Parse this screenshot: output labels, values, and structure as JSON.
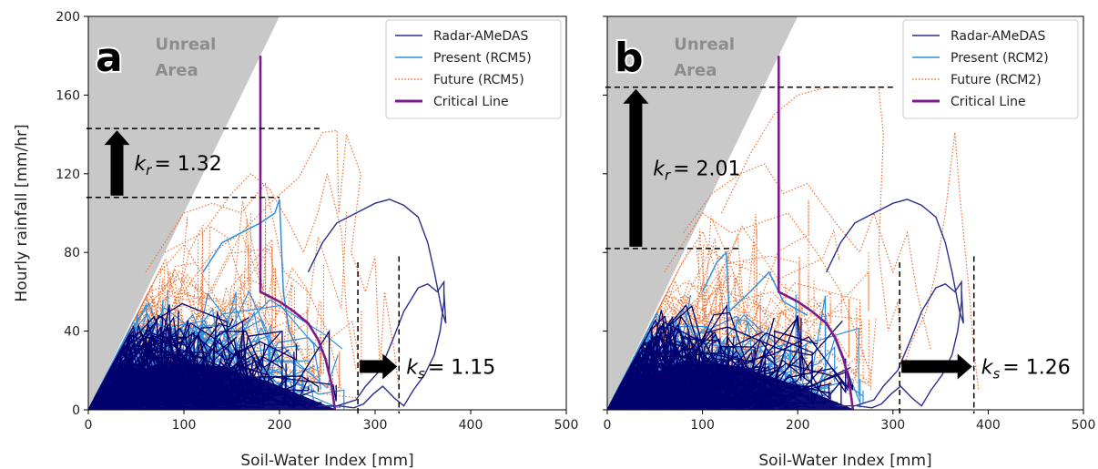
{
  "chart_data": [
    {
      "type": "line",
      "panel_label": "a",
      "xlabel": "Soil-Water Index [mm]",
      "ylabel": "Hourly rainfall [mm/hr]",
      "xlim": [
        0,
        500
      ],
      "ylim": [
        0,
        200
      ],
      "xticks": [
        0,
        100,
        200,
        300,
        400,
        500
      ],
      "yticks": [
        0,
        40,
        80,
        120,
        160,
        200
      ],
      "legend_position": "top-right",
      "legend": [
        "Radar-AMeDAS",
        "Present (RCM5)",
        "Future (RCM5)",
        "Critical Line"
      ],
      "unreal_label_1": "Unreal",
      "unreal_label_2": "Area",
      "unreal_area": [
        [
          0,
          0
        ],
        [
          0,
          200
        ],
        [
          200,
          200
        ]
      ],
      "critical_line": [
        [
          180,
          180
        ],
        [
          180,
          100
        ],
        [
          180,
          60
        ],
        [
          200,
          55
        ],
        [
          215,
          50
        ],
        [
          230,
          44
        ],
        [
          240,
          36
        ],
        [
          248,
          26
        ],
        [
          254,
          14
        ],
        [
          258,
          0
        ]
      ],
      "kr_prefix": "k",
      "kr_sub": "r",
      "kr_value": "= 1.32",
      "kr_lower": 108,
      "kr_upper": 143,
      "ks_prefix": "k",
      "ks_sub": "s",
      "ks_value": "= 1.15",
      "ks_left": 282,
      "ks_right": 325,
      "radar_loop": [
        [
          240,
          2
        ],
        [
          260,
          2
        ],
        [
          280,
          5
        ],
        [
          290,
          12
        ],
        [
          305,
          20
        ],
        [
          318,
          35
        ],
        [
          330,
          50
        ],
        [
          345,
          62
        ],
        [
          355,
          64
        ],
        [
          365,
          60
        ],
        [
          372,
          65
        ],
        [
          372,
          55
        ],
        [
          368,
          40
        ],
        [
          362,
          28
        ],
        [
          352,
          18
        ],
        [
          340,
          10
        ],
        [
          330,
          2
        ],
        [
          320,
          6
        ],
        [
          308,
          12
        ],
        [
          298,
          8
        ],
        [
          288,
          3
        ],
        [
          278,
          1
        ],
        [
          262,
          2
        ]
      ],
      "radar_peak": [
        [
          230,
          70
        ],
        [
          245,
          85
        ],
        [
          260,
          95
        ],
        [
          280,
          100
        ],
        [
          300,
          105
        ],
        [
          315,
          107
        ],
        [
          330,
          104
        ],
        [
          345,
          98
        ],
        [
          355,
          85
        ],
        [
          362,
          70
        ],
        [
          366,
          60
        ],
        [
          370,
          50
        ],
        [
          374,
          44
        ],
        [
          372,
          60
        ]
      ],
      "present_peak": [
        [
          120,
          70
        ],
        [
          140,
          85
        ],
        [
          160,
          90
        ],
        [
          180,
          95
        ],
        [
          195,
          100
        ],
        [
          200,
          107
        ],
        [
          204,
          60
        ],
        [
          210,
          40
        ],
        [
          220,
          30
        ]
      ],
      "future_paths": [
        [
          [
            100,
            60
          ],
          [
            130,
            80
          ],
          [
            160,
            90
          ],
          [
            190,
            105
          ],
          [
            220,
            118
          ],
          [
            245,
            141
          ],
          [
            260,
            142
          ],
          [
            262,
            100
          ],
          [
            270,
            140
          ],
          [
            285,
            120
          ],
          [
            275,
            80
          ],
          [
            290,
            60
          ],
          [
            300,
            78
          ],
          [
            305,
            20
          ],
          [
            310,
            60
          ],
          [
            320,
            30
          ],
          [
            325,
            10
          ]
        ],
        [
          [
            80,
            80
          ],
          [
            120,
            90
          ],
          [
            150,
            110
          ],
          [
            170,
            120
          ],
          [
            190,
            112
          ],
          [
            210,
            95
          ],
          [
            225,
            80
          ],
          [
            240,
            100
          ],
          [
            250,
            120
          ],
          [
            265,
            90
          ],
          [
            270,
            50
          ],
          [
            280,
            20
          ]
        ],
        [
          [
            60,
            70
          ],
          [
            100,
            100
          ],
          [
            130,
            105
          ],
          [
            160,
            100
          ],
          [
            185,
            115
          ],
          [
            205,
            70
          ],
          [
            230,
            60
          ],
          [
            250,
            40
          ],
          [
            265,
            10
          ]
        ]
      ]
    },
    {
      "type": "line",
      "panel_label": "b",
      "xlabel": "Soil-Water Index [mm]",
      "ylabel": "",
      "xlim": [
        0,
        500
      ],
      "ylim": [
        0,
        200
      ],
      "xticks": [
        0,
        100,
        200,
        300,
        400,
        500
      ],
      "yticks": [],
      "legend_position": "top-right",
      "legend": [
        "Radar-AMeDAS",
        "Present (RCM2)",
        "Future (RCM2)",
        "Critical Line"
      ],
      "unreal_label_1": "Unreal",
      "unreal_label_2": "Area",
      "unreal_area": [
        [
          0,
          0
        ],
        [
          0,
          200
        ],
        [
          200,
          200
        ]
      ],
      "critical_line": [
        [
          180,
          180
        ],
        [
          180,
          100
        ],
        [
          180,
          60
        ],
        [
          200,
          55
        ],
        [
          215,
          50
        ],
        [
          230,
          44
        ],
        [
          240,
          36
        ],
        [
          248,
          26
        ],
        [
          254,
          14
        ],
        [
          258,
          0
        ]
      ],
      "kr_prefix": "k",
      "kr_sub": "r",
      "kr_value": "= 2.01",
      "kr_lower": 82,
      "kr_upper": 164,
      "ks_prefix": "k",
      "ks_sub": "s",
      "ks_value": "= 1.26",
      "ks_left": 307,
      "ks_right": 385,
      "radar_loop": [
        [
          240,
          2
        ],
        [
          260,
          2
        ],
        [
          280,
          5
        ],
        [
          290,
          12
        ],
        [
          305,
          20
        ],
        [
          318,
          35
        ],
        [
          330,
          50
        ],
        [
          345,
          62
        ],
        [
          355,
          64
        ],
        [
          365,
          60
        ],
        [
          372,
          65
        ],
        [
          372,
          55
        ],
        [
          368,
          40
        ],
        [
          362,
          28
        ],
        [
          352,
          18
        ],
        [
          340,
          10
        ],
        [
          330,
          2
        ],
        [
          320,
          6
        ],
        [
          308,
          12
        ],
        [
          298,
          8
        ],
        [
          288,
          3
        ],
        [
          278,
          1
        ],
        [
          262,
          2
        ]
      ],
      "radar_peak": [
        [
          230,
          70
        ],
        [
          245,
          85
        ],
        [
          260,
          95
        ],
        [
          280,
          100
        ],
        [
          300,
          105
        ],
        [
          315,
          107
        ],
        [
          330,
          104
        ],
        [
          345,
          98
        ],
        [
          355,
          85
        ],
        [
          362,
          70
        ],
        [
          366,
          60
        ],
        [
          370,
          50
        ],
        [
          374,
          44
        ],
        [
          372,
          60
        ]
      ],
      "present_peak": [
        [
          100,
          60
        ],
        [
          115,
          75
        ],
        [
          125,
          80
        ],
        [
          128,
          50
        ],
        [
          150,
          60
        ],
        [
          170,
          70
        ],
        [
          185,
          55
        ],
        [
          210,
          48
        ]
      ],
      "future_paths": [
        [
          [
            120,
            100
          ],
          [
            150,
            130
          ],
          [
            175,
            150
          ],
          [
            200,
            160
          ],
          [
            230,
            164
          ],
          [
            285,
            164
          ],
          [
            290,
            140
          ],
          [
            285,
            80
          ],
          [
            295,
            40
          ],
          [
            305,
            55
          ],
          [
            310,
            20
          ],
          [
            320,
            35
          ],
          [
            335,
            50
          ],
          [
            345,
            70
          ],
          [
            355,
            100
          ],
          [
            365,
            141
          ],
          [
            370,
            110
          ],
          [
            380,
            60
          ],
          [
            385,
            30
          ],
          [
            390,
            10
          ]
        ],
        [
          [
            80,
            90
          ],
          [
            110,
            110
          ],
          [
            140,
            120
          ],
          [
            165,
            125
          ],
          [
            185,
            110
          ],
          [
            210,
            115
          ],
          [
            240,
            95
          ],
          [
            265,
            80
          ],
          [
            280,
            100
          ],
          [
            300,
            70
          ],
          [
            315,
            90
          ],
          [
            325,
            60
          ],
          [
            340,
            30
          ]
        ],
        [
          [
            60,
            70
          ],
          [
            100,
            100
          ],
          [
            130,
            90
          ],
          [
            160,
            95
          ],
          [
            190,
            100
          ],
          [
            220,
            80
          ],
          [
            245,
            60
          ],
          [
            260,
            40
          ],
          [
            275,
            20
          ]
        ]
      ]
    }
  ]
}
